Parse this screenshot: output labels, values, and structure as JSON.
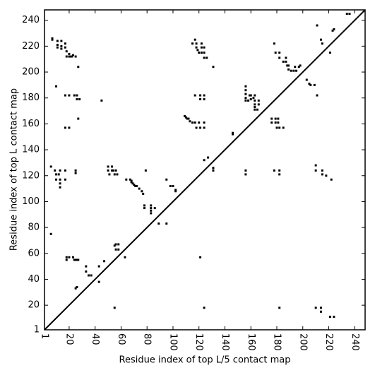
{
  "chart_data": {
    "type": "scatter",
    "x_label": "Residue index of top L/5 contact map",
    "y_label": "Residue index of top L contact map",
    "color": "#000000",
    "diagonal": true,
    "xlim": [
      1,
      248
    ],
    "ylim": [
      1,
      248
    ],
    "xticks": [
      1,
      20,
      40,
      60,
      80,
      100,
      120,
      140,
      160,
      180,
      200,
      220,
      240
    ],
    "yticks": [
      1,
      20,
      40,
      60,
      80,
      100,
      120,
      140,
      160,
      180,
      200,
      220,
      240
    ],
    "x": [
      7,
      7,
      11,
      11,
      11,
      14,
      14,
      14,
      17,
      17,
      18,
      20,
      18,
      20,
      21,
      22,
      23,
      25,
      27,
      10,
      17,
      20,
      24,
      26,
      26,
      28,
      27,
      17,
      20,
      45,
      6,
      9,
      13,
      17,
      10,
      12,
      10,
      13,
      17,
      13,
      13,
      25,
      25,
      50,
      50,
      53,
      54,
      56,
      53,
      51,
      55,
      57,
      64,
      67,
      68,
      68,
      69,
      70,
      71,
      72,
      74,
      76,
      77,
      95,
      98,
      100,
      102,
      102,
      118,
      118,
      119,
      120,
      122,
      122,
      122,
      124,
      124,
      124,
      126,
      115,
      117,
      131,
      109,
      110,
      111,
      112,
      113,
      115,
      117,
      120,
      124,
      118,
      121,
      124,
      117,
      121,
      124,
      121,
      124,
      124,
      127,
      131,
      131,
      146,
      146,
      156,
      156,
      156,
      156,
      156,
      159,
      160,
      160,
      162,
      163,
      163,
      163,
      163,
      163,
      165,
      166,
      166,
      158,
      176,
      176,
      179,
      179,
      181,
      181,
      180,
      182,
      185,
      178,
      179,
      182,
      182,
      185,
      187,
      187,
      188,
      189,
      189,
      191,
      193,
      195,
      194,
      197,
      198,
      203,
      205,
      206,
      209,
      211,
      211,
      214,
      215,
      221,
      223,
      224,
      234,
      236,
      156,
      156,
      178,
      182,
      182,
      210,
      210,
      215,
      215,
      218,
      222,
      6,
      18,
      18,
      20,
      23,
      24,
      25,
      26,
      27,
      25,
      26,
      33,
      33,
      35,
      37,
      43,
      43,
      47,
      55,
      56,
      58,
      56,
      58,
      55,
      63,
      89,
      95,
      83,
      83,
      83,
      83,
      86,
      78,
      78,
      79,
      121,
      124,
      182,
      210,
      214,
      214,
      221,
      224
    ],
    "values": [
      226,
      225,
      224,
      221,
      219,
      224,
      220,
      218,
      222,
      219,
      216,
      214,
      212,
      212,
      212,
      212,
      213,
      212,
      204,
      189,
      182,
      182,
      182,
      182,
      179,
      179,
      164,
      157,
      157,
      178,
      127,
      124,
      124,
      124,
      121,
      121,
      117,
      117,
      117,
      114,
      111,
      124,
      122,
      127,
      124,
      124,
      124,
      124,
      127,
      121,
      121,
      121,
      117,
      117,
      116,
      115,
      114,
      113,
      112,
      112,
      110,
      108,
      106,
      117,
      112,
      112,
      109,
      108,
      222,
      219,
      217,
      215,
      222,
      219,
      215,
      219,
      215,
      211,
      211,
      222,
      225,
      204,
      166,
      165,
      164,
      164,
      162,
      161,
      161,
      161,
      161,
      157,
      157,
      157,
      182,
      182,
      182,
      179,
      179,
      132,
      134,
      126,
      124,
      153,
      152,
      189,
      186,
      183,
      180,
      178,
      182,
      182,
      179,
      180,
      182,
      178,
      175,
      173,
      171,
      171,
      175,
      178,
      178,
      164,
      161,
      164,
      161,
      164,
      161,
      157,
      157,
      157,
      222,
      215,
      215,
      211,
      208,
      211,
      208,
      205,
      205,
      202,
      201,
      201,
      201,
      204,
      204,
      205,
      194,
      191,
      190,
      190,
      182,
      236,
      225,
      222,
      215,
      232,
      233,
      245,
      245,
      124,
      121,
      124,
      124,
      121,
      128,
      124,
      124,
      121,
      120,
      117,
      75,
      57,
      55,
      57,
      57,
      55,
      55,
      55,
      55,
      33,
      34,
      50,
      46,
      43,
      43,
      38,
      50,
      54,
      18,
      63,
      63,
      67,
      67,
      66,
      57,
      83,
      83,
      97,
      95,
      93,
      91,
      95,
      97,
      95,
      124,
      57,
      18,
      18,
      18,
      18,
      15,
      11,
      11
    ]
  }
}
